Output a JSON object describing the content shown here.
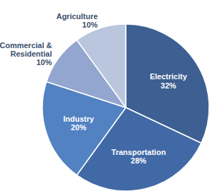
{
  "chart_data": {
    "type": "pie",
    "categories": [
      "Electricity",
      "Transportation",
      "Industry",
      "Commercial & Residential",
      "Agriculture"
    ],
    "values": [
      32,
      28,
      20,
      10,
      10
    ],
    "value_labels": [
      "32%",
      "28%",
      "20%",
      "10%",
      "10%"
    ],
    "colors": [
      "#3d5f91",
      "#4169a6",
      "#5282c2",
      "#93a6cf",
      "#bac6de"
    ],
    "data_labels": true
  }
}
